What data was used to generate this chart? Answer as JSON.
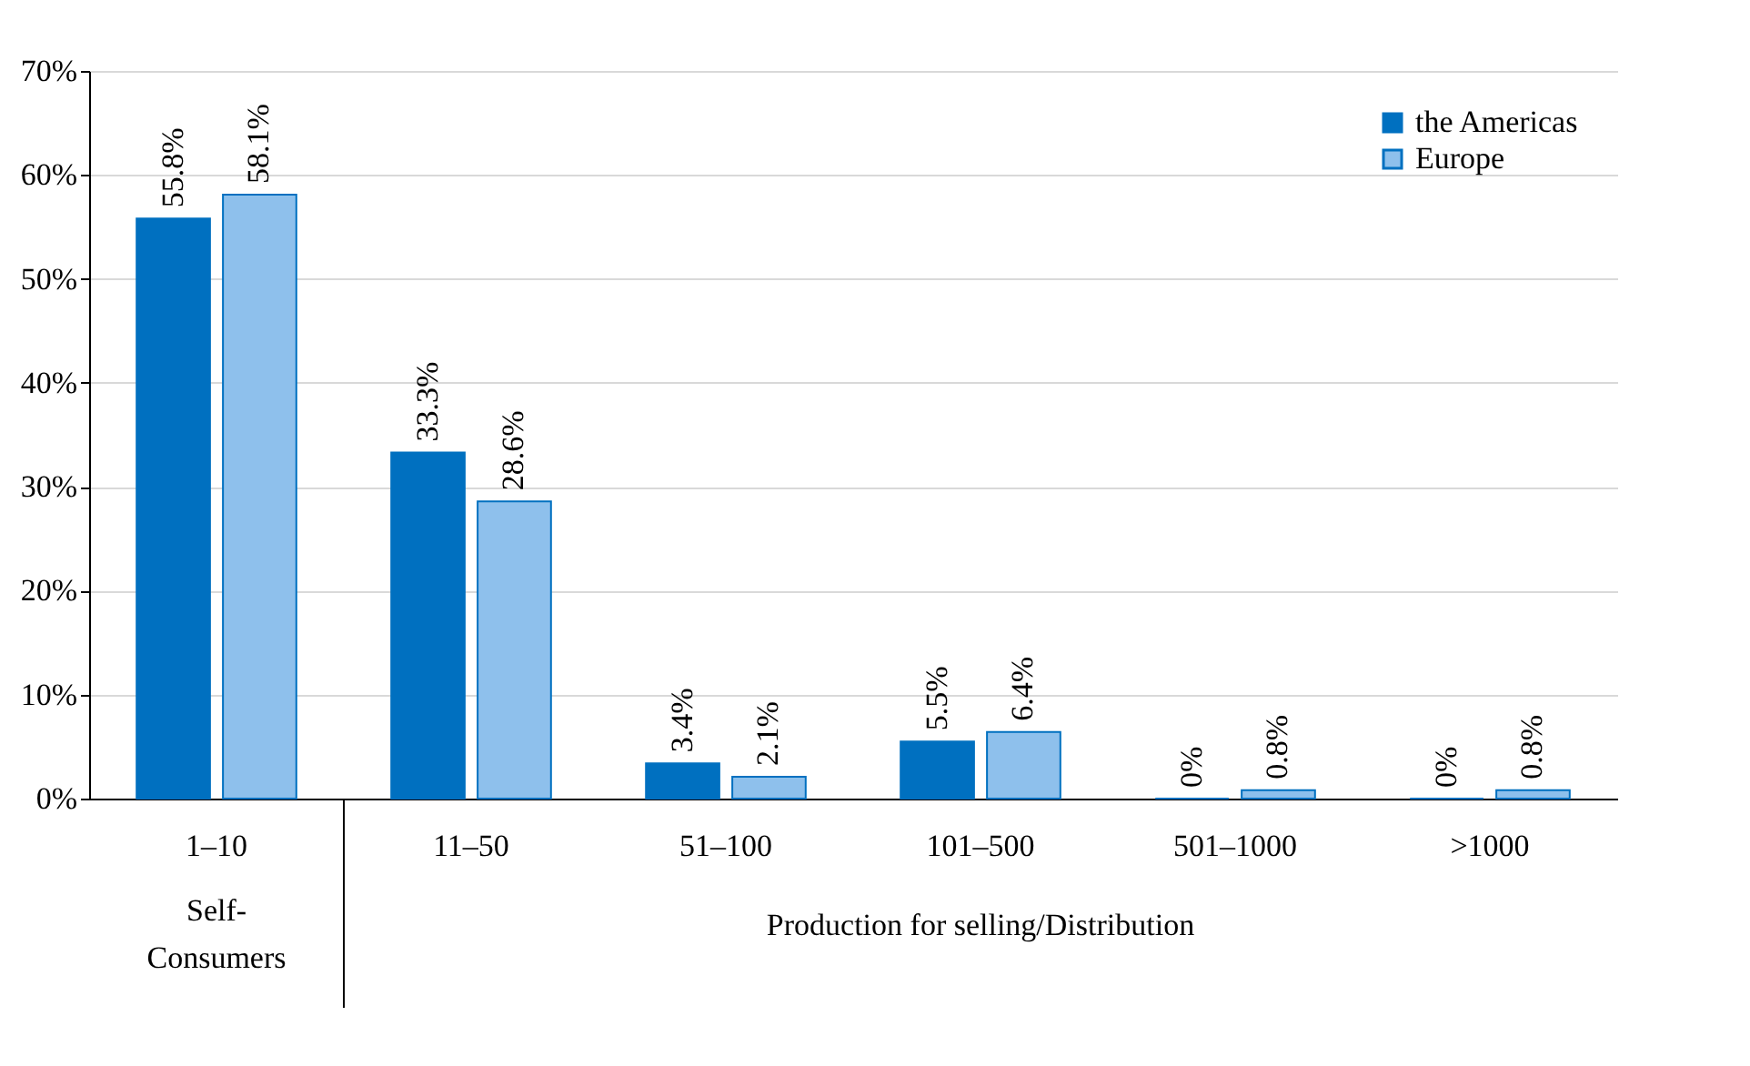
{
  "chart_data": {
    "type": "bar",
    "categories": [
      "1–10",
      "11–50",
      "51–100",
      "101–500",
      "501–1000",
      ">1000"
    ],
    "series": [
      {
        "name": "the Americas",
        "color": "#0070c0",
        "values": [
          55.8,
          33.3,
          3.4,
          5.5,
          0,
          0
        ],
        "value_labels": [
          "55.8%",
          "33.3%",
          "3.4%",
          "5.5%",
          "0%",
          "0%"
        ]
      },
      {
        "name": "Europe",
        "color": "#8ec0ec",
        "values": [
          58.1,
          28.6,
          2.1,
          6.4,
          0.8,
          0.8
        ],
        "value_labels": [
          "58.1%",
          "28.6%",
          "2.1%",
          "6.4%",
          "0.8%",
          "0.8%"
        ]
      }
    ],
    "ylim": [
      0,
      70
    ],
    "yticks": [
      {
        "value": 0,
        "label": "0%"
      },
      {
        "value": 10,
        "label": "10%"
      },
      {
        "value": 20,
        "label": "20%"
      },
      {
        "value": 30,
        "label": "30%"
      },
      {
        "value": 40,
        "label": "40%"
      },
      {
        "value": 50,
        "label": "50%"
      },
      {
        "value": 60,
        "label": "60%"
      },
      {
        "value": 70,
        "label": "70%"
      }
    ],
    "annotations": [
      "Self-\nConsumers",
      "Production for selling/Distribution"
    ],
    "grid": "y",
    "legend": "top right"
  }
}
